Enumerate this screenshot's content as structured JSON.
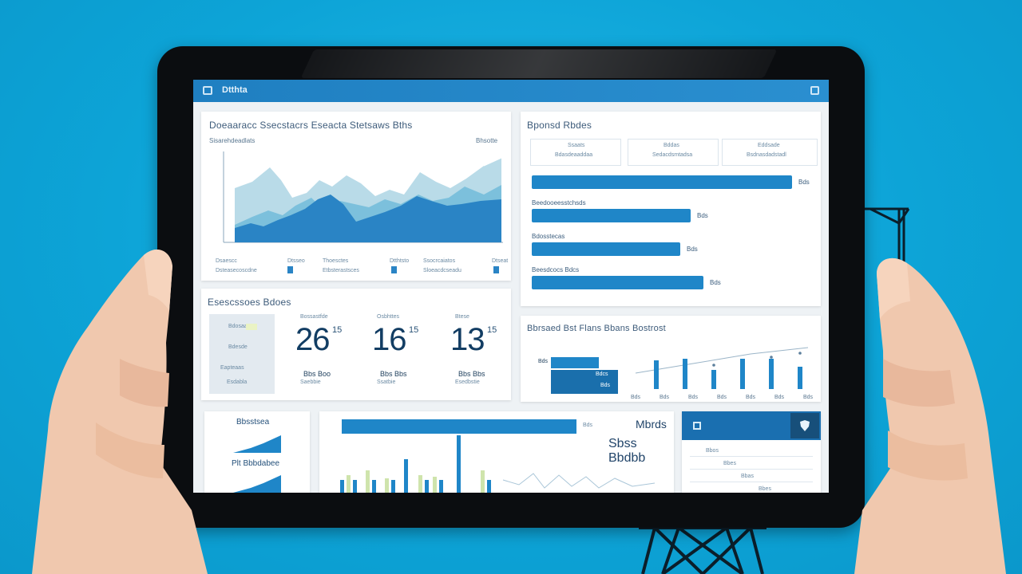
{
  "app": {
    "title": "Dtthta",
    "colors": {
      "background": "#0fa7d8",
      "accent": "#1f86c8",
      "bezel": "#0b0d10"
    }
  },
  "area_panel": {
    "title": "Doeaaracc Ssecstacrs Eseacta Stetsaws Bths",
    "subtitle": "Sisarehdeadlats",
    "corner_label": "Bhsotte",
    "legend": [
      {
        "label": "Dsaescc",
        "value": "Dtsseo"
      },
      {
        "label": "Thoesctes",
        "value": "Dtthtsto"
      },
      {
        "label": "Ssocrcaiatos",
        "value": "Dtseat"
      }
    ],
    "legend_lines": [
      "Dsteasecoscdne",
      "Etbsterastsces",
      "Sloeacdcseadu"
    ]
  },
  "bars_panel": {
    "title": "Bponsd Rbdes",
    "tabs": [
      {
        "line1": "Ssaats",
        "line2": "Bdasdeaaddaa"
      },
      {
        "line1": "Bddas",
        "line2": "Sedacdsmtadsa"
      },
      {
        "line1": "Eddsade",
        "line2": "Bsdnasdadstadl"
      }
    ],
    "rows": [
      {
        "label": "",
        "value": "Bds",
        "fraction": 1.0
      },
      {
        "label": "Beedooeesstchsds",
        "value": "Bds",
        "fraction": 0.61
      },
      {
        "label": "Bdosstecas",
        "value": "Bds",
        "fraction": 0.57
      },
      {
        "label": "Beesdcocs Bdcs",
        "value": "Bds",
        "fraction": 0.66
      }
    ]
  },
  "stats_panel": {
    "title": "Esescssoes Bdoes",
    "side_items": [
      "Bdosaa",
      "Bdesde",
      "Eapteaas",
      "Esdabla"
    ],
    "kpis": [
      {
        "label": "Bossastfde",
        "number": "26",
        "sup": "15",
        "foot": "Bbs Boo",
        "foot2": "Saebbie"
      },
      {
        "label": "Osbhttes",
        "number": "16",
        "sup": "15",
        "foot": "Bbs Bbs",
        "foot2": "Ssatbie"
      },
      {
        "label": "Btese",
        "number": "13",
        "sup": "15",
        "foot": "Bbs Bbs",
        "foot2": "Esedbstie"
      }
    ]
  },
  "trend_panel": {
    "title": "Bbrsaed Bst Flans Bbans Bostrost",
    "stack_labels": [
      "Bds",
      "Bdcs",
      "Bds"
    ],
    "axis": [
      "Bds",
      "Bds",
      "Bds",
      "Bds",
      "Bds",
      "Bds",
      "Bds"
    ]
  },
  "bottom_left": {
    "label1": "Bbsstsea",
    "label2": "Plt Bbbdabee"
  },
  "bottom_mid": {
    "bar_value": "Bds",
    "side_title": "Mbrds",
    "side_big": "Sbss Bbdbb"
  },
  "bottom_right": {
    "rows": [
      "Bbos",
      "Bbes",
      "Bbas",
      "Bbes"
    ]
  }
}
